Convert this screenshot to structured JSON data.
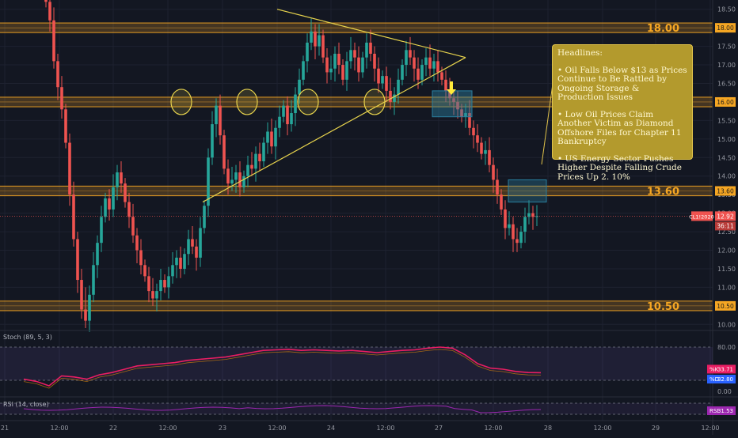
{
  "chart_data": {
    "type": "candlestick",
    "symbol_tag": "CL1!2020",
    "last_price": "12.92",
    "countdown": "36:11",
    "y_range": [
      9.9,
      18.75
    ],
    "y_ticks": [
      "18.50",
      "18.00",
      "17.50",
      "17.00",
      "16.50",
      "16.00",
      "15.50",
      "15.00",
      "14.50",
      "14.00",
      "13.50",
      "13.00",
      "12.50",
      "12.00",
      "11.50",
      "11.00",
      "10.50",
      "10.00"
    ],
    "x_ticks": [
      "21",
      "12:00",
      "22",
      "12:00",
      "23",
      "12:00",
      "24",
      "12:00",
      "27",
      "12:00",
      "28",
      "12:00",
      "29",
      "12:00"
    ],
    "levels": [
      {
        "value": 18.0,
        "label": "18.00",
        "tag": "18.00"
      },
      {
        "value": 16.0,
        "label": "",
        "tag": "16.00"
      },
      {
        "value": 13.6,
        "label": "13.60",
        "tag": "13.60"
      },
      {
        "value": 10.5,
        "label": "10.50",
        "tag": "10.50"
      }
    ],
    "closes": [
      18.7,
      18.2,
      17.1,
      16.4,
      15.8,
      14.9,
      13.5,
      12.3,
      11.2,
      10.4,
      10.1,
      10.8,
      11.6,
      12.2,
      12.9,
      13.4,
      13.1,
      13.7,
      14.1,
      13.8,
      13.3,
      12.9,
      12.4,
      12.0,
      11.6,
      11.3,
      10.9,
      10.7,
      10.9,
      11.2,
      11.0,
      11.3,
      11.6,
      11.8,
      11.5,
      11.9,
      12.3,
      12.1,
      11.8,
      12.6,
      13.2,
      14.5,
      15.4,
      15.9,
      15.1,
      14.2,
      13.8,
      13.9,
      14.1,
      13.7,
      14.0,
      14.3,
      14.2,
      14.6,
      14.4,
      14.9,
      15.2,
      14.8,
      15.3,
      15.6,
      15.9,
      15.4,
      15.7,
      16.2,
      16.6,
      17.1,
      17.6,
      17.9,
      17.5,
      17.8,
      17.2,
      16.8,
      16.9,
      17.3,
      17.0,
      16.6,
      17.1,
      17.4,
      17.2,
      16.8,
      17.2,
      17.6,
      17.3,
      16.9,
      16.5,
      16.7,
      16.3,
      16.0,
      16.2,
      16.6,
      17.0,
      17.4,
      17.2,
      16.9,
      16.6,
      17.0,
      17.2,
      16.9,
      17.1,
      16.8,
      16.6,
      16.3,
      16.1,
      16.0,
      15.8,
      15.6,
      15.7,
      15.3,
      15.1,
      14.9,
      14.6,
      14.7,
      14.3,
      13.9,
      13.5,
      13.1,
      12.6,
      12.7,
      12.3,
      12.2,
      12.5,
      12.9,
      13.0,
      12.9,
      12.92
    ],
    "triangle": {
      "top_start": 18.5,
      "bottom_start": 13.3,
      "apex": 17.2
    },
    "circles_at_level": 16.0,
    "stoch": {
      "label": "Stoch (89, 5, 3)",
      "k_tag": "%K",
      "k": "33.71",
      "d_tag": "%D",
      "d": "32.80",
      "ticks": [
        "80.00",
        "40.00",
        "0.00"
      ],
      "range": [
        0,
        100
      ],
      "k_values": [
        22,
        18,
        10,
        28,
        26,
        22,
        30,
        34,
        40,
        46,
        48,
        50,
        52,
        56,
        58,
        60,
        62,
        66,
        70,
        74,
        75,
        76,
        74,
        75,
        74,
        73,
        74,
        72,
        70,
        72,
        74,
        75,
        78,
        80,
        78,
        66,
        50,
        42,
        40,
        36,
        34,
        33.7
      ]
    },
    "rsi": {
      "label": "RSI (14, close)",
      "tag": "RSI",
      "value": "31.53"
    }
  },
  "headlines": {
    "title": "Headlines:",
    "items": [
      "• Oil Falls Below $13 as Prices Continue to Be Rattled by Ongoing Storage & Production Issues",
      "• Low Oil Prices Claim Another Victim as Diamond Offshore Files for Chapter 11 Bankruptcy",
      "• US Energy Sector Pushes Higher Despite Falling Crude Prices Up 2. 10%"
    ]
  },
  "colors": {
    "up": "#26a69a",
    "down": "#ef5350",
    "level": "#f5a623",
    "triangle": "#e8d44d",
    "stoch_k": "#e91e63",
    "rsi": "#9c27b0",
    "box": "#2a7f9e"
  }
}
